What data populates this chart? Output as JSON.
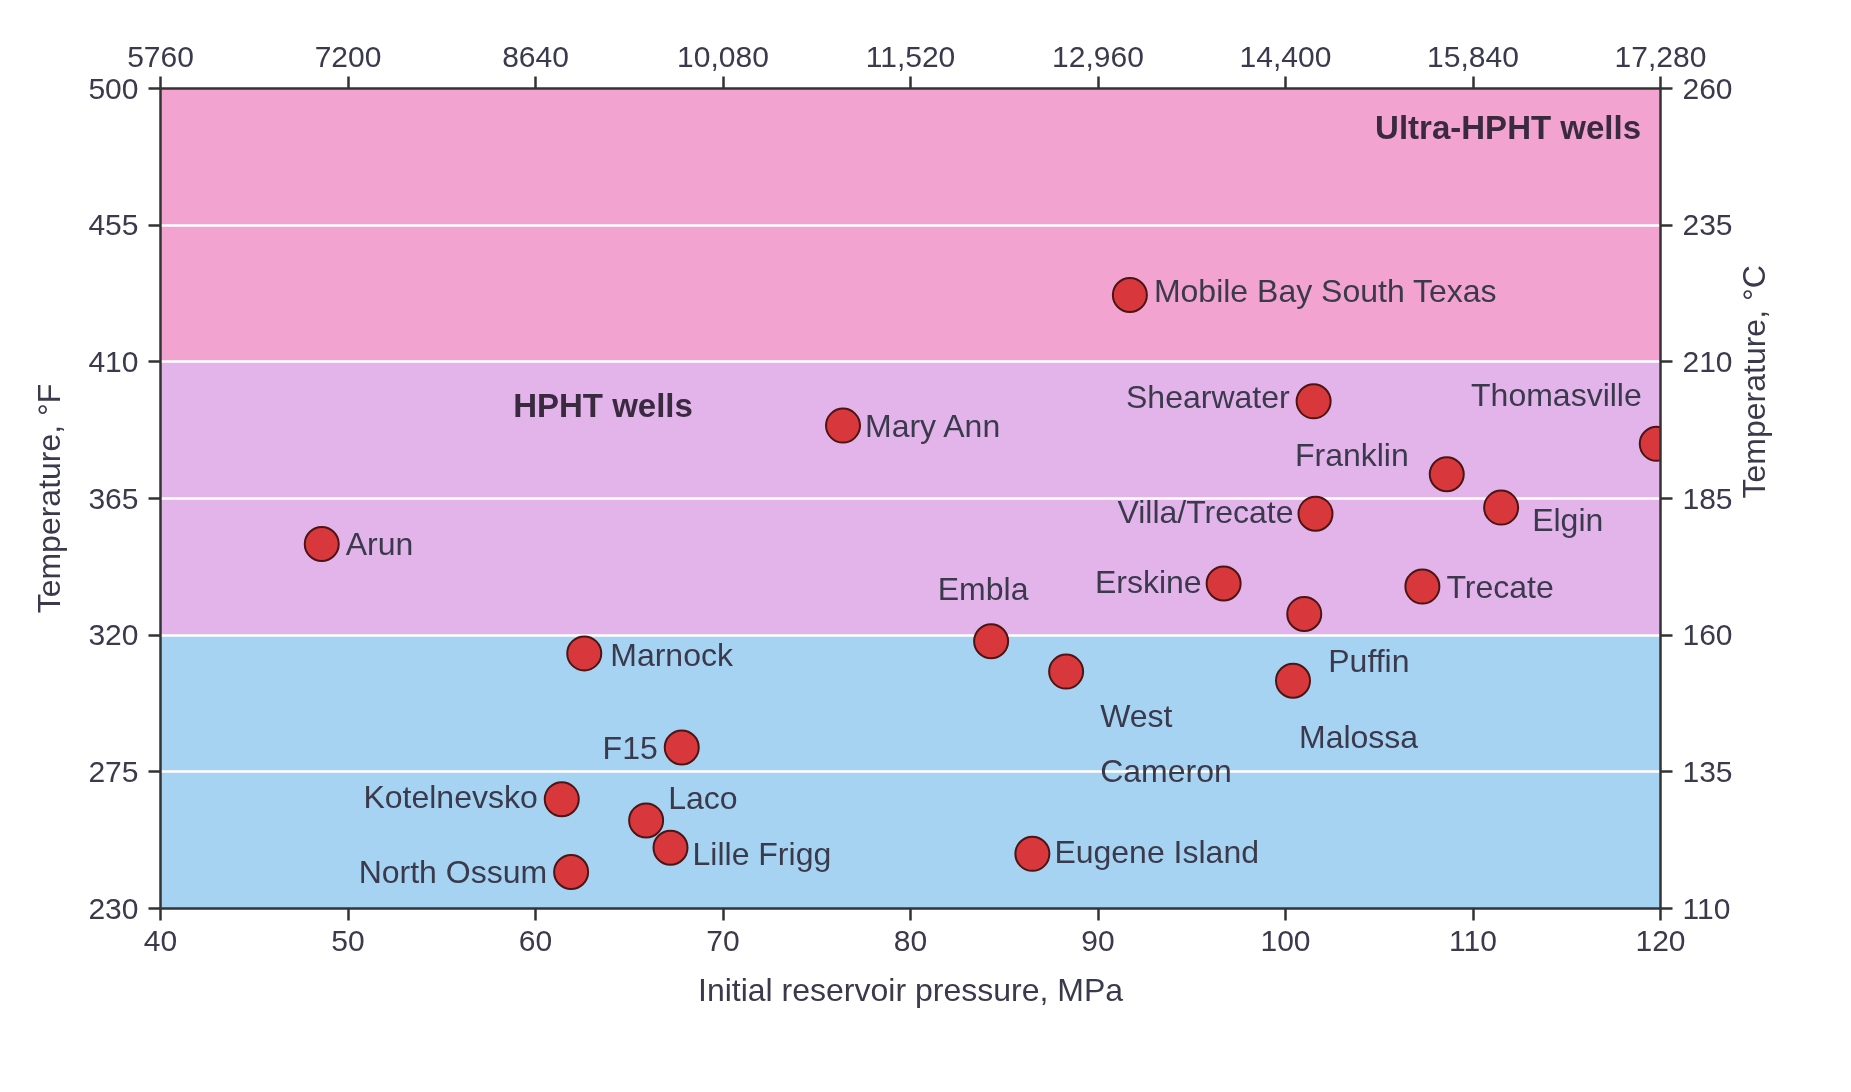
{
  "chart_data": {
    "type": "scatter",
    "xlabel": "Initial reservoir pressure, MPa",
    "ylabel": "Temperature, °F",
    "y2label": "Temperature, °C",
    "annotations": [
      "HPHT wells",
      "Ultra-HPHT wells"
    ],
    "series": [
      {
        "color": "#d8383c",
        "x": [
          48.6,
          61.9,
          61.4,
          62.6,
          65.9,
          67.2,
          67.8,
          76.4,
          84.3,
          86.5,
          88.3,
          91.7,
          96.7,
          100.4,
          101.0,
          101.5,
          101.6,
          107.3,
          108.6,
          111.5,
          119.8
        ],
        "values": [
          350,
          242,
          266,
          314,
          259,
          250,
          283,
          389,
          318,
          248,
          308,
          432,
          337,
          305,
          327,
          397,
          360,
          336,
          373,
          362,
          383
        ],
        "value_labels": [
          "Arun",
          "North Ossum",
          "Kotelnevsko",
          "Marnock",
          "Laco",
          "Lille Frigg",
          "F15",
          "Mary Ann",
          "Embla",
          "Eugene Island",
          "West Cameron",
          "Mobile Bay South Texas",
          "Erskine",
          "Malossa",
          "Puffin",
          "Shearwater",
          "Villa/Trecate",
          "Trecate",
          "Franklin",
          "Elgin",
          "Thomasville"
        ]
      }
    ],
    "xlim": [
      40,
      120
    ],
    "xticks": [
      40,
      50,
      60,
      70,
      80,
      90,
      100,
      110,
      120
    ],
    "ylim": [
      230,
      500
    ],
    "yticks": [
      230,
      275,
      320,
      365,
      410,
      455,
      500
    ],
    "y2lim": [
      110,
      260
    ],
    "y2ticks": [
      110,
      135,
      160,
      185,
      210,
      235,
      260
    ],
    "x2lim": [
      5760,
      17280
    ],
    "x2ticks": [
      5760,
      7200,
      8640,
      {
        "value": 10080,
        "label": "10,080"
      },
      {
        "value": 11520,
        "label": "11,520"
      },
      {
        "value": 12960,
        "label": "12,960"
      },
      {
        "value": 14400,
        "label": "14,400"
      },
      {
        "value": 15840,
        "label": "15,840"
      },
      {
        "value": 17280,
        "label": "17,280"
      }
    ],
    "bands": [
      {
        "axis": "y",
        "from": 230,
        "to": 320,
        "color": "#a6d3f2"
      },
      {
        "axis": "y",
        "from": 320,
        "to": 410,
        "color": "#e2b4ea"
      },
      {
        "axis": "y",
        "from": 410,
        "to": 500,
        "color": "#f3a3d0"
      }
    ],
    "grid": "y",
    "marker": "circle"
  }
}
